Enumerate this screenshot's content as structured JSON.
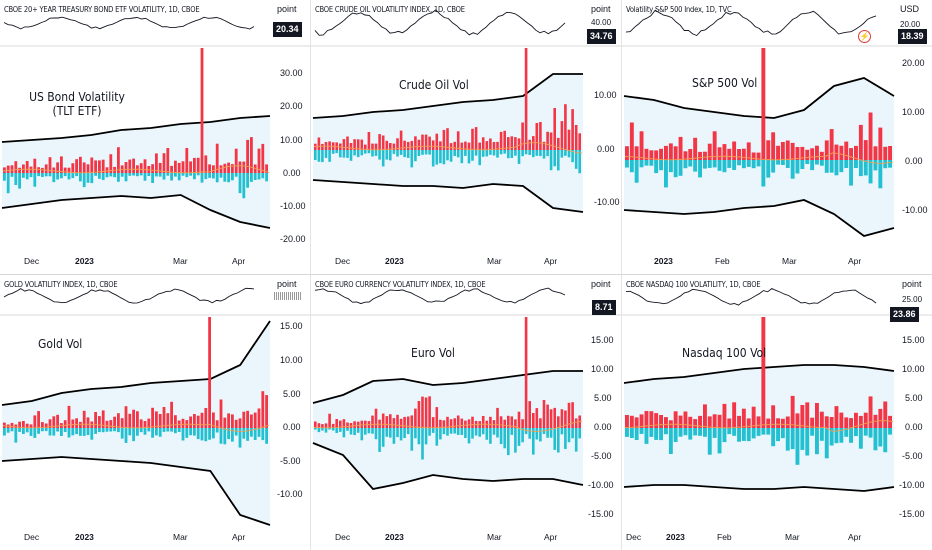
{
  "colors": {
    "pos": "#f23645",
    "neg": "#22c0d0",
    "band_fill": "#eaf5fc",
    "band_line": "#000000",
    "ma": "#f0a050",
    "mini_line": "#131722"
  },
  "panels": [
    {
      "mini_title": "CBOE 20+ YEAR TREASURY BOND ETF VOLATILITY, 1D, CBOE",
      "unit": "point",
      "last_value": "20.34",
      "chart_title": "US Bond Volatility (TLT ETF)",
      "y_ticks": [
        "30.00",
        "20.00",
        "10.00",
        "0.00",
        "-10.00",
        "-20.00"
      ],
      "x_ticks": [
        "Dec",
        "2023",
        "Mar",
        "Apr"
      ],
      "flash": false
    },
    {
      "mini_title": "CBOE CRUDE OIL VOLATILITY INDEX, 1D, CBOE",
      "unit": "point",
      "unit_sub": "40.00",
      "last_value": "34.76",
      "chart_title": "Crude Oil Vol",
      "y_ticks": [
        "10.00",
        "0.00",
        "-10.00"
      ],
      "x_ticks": [
        "Dec",
        "2023",
        "Mar",
        "Apr"
      ],
      "flash": false
    },
    {
      "mini_title": "Volatility S&P 500 Index, 1D, TVC",
      "unit": "USD",
      "unit_sub": "20.00",
      "last_value": "18.39",
      "chart_title": "S&P 500 Vol",
      "y_ticks": [
        "20.00",
        "10.00",
        "0.00",
        "-10.00"
      ],
      "x_ticks": [
        "2023",
        "Feb",
        "Mar",
        "Apr"
      ],
      "flash": true
    },
    {
      "mini_title": "GOLD VOLATILITY INDEX, 1D, CBOE",
      "unit": "point",
      "last_value": "",
      "chart_title": "Gold Vol",
      "y_ticks": [
        "15.00",
        "10.00",
        "5.00",
        "0.00",
        "-5.00",
        "-10.00"
      ],
      "x_ticks": [
        "Dec",
        "2023",
        "Mar",
        "Apr"
      ],
      "flash": false
    },
    {
      "mini_title": "CBOE EURO CURRENCY VOLATILITY INDEX, 1D, CBOE",
      "unit": "point",
      "last_value": "8.71",
      "chart_title": "Euro Vol",
      "y_ticks": [
        "15.00",
        "10.00",
        "5.00",
        "0.00",
        "-5.00",
        "-10.00",
        "-15.00"
      ],
      "x_ticks": [
        "Dec",
        "2023",
        "Mar",
        "Apr"
      ],
      "flash": false
    },
    {
      "mini_title": "CBOE NASDAQ 100 VOLATILITY, 1D, CBOE",
      "unit": "point",
      "unit_sub": "25.00",
      "last_value": "23.86",
      "chart_title": "Nasdaq 100 Vol",
      "y_ticks": [
        "15.00",
        "10.00",
        "5.00",
        "0.00",
        "-5.00",
        "-10.00",
        "-15.00"
      ],
      "x_ticks": [
        "Dec",
        "2023",
        "Feb",
        "Mar",
        "Apr"
      ],
      "flash": false
    }
  ]
}
